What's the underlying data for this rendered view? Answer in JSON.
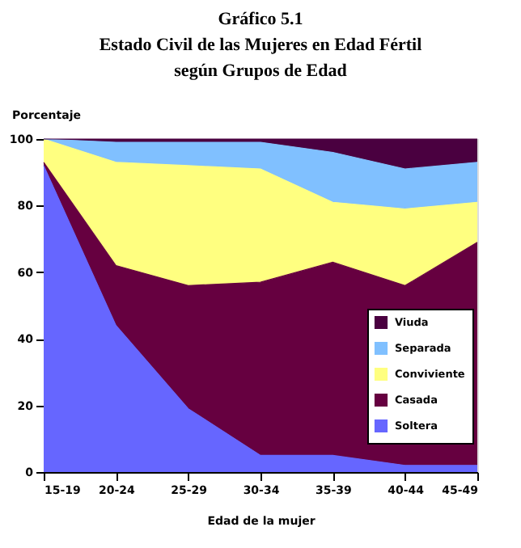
{
  "chart_data": {
    "type": "area",
    "stacked": true,
    "title": [
      "Gráfico 5.1",
      "Estado Civil de las Mujeres en Edad Fértil",
      "según Grupos de Edad"
    ],
    "ylabel": "Porcentaje",
    "xlabel": "Edad de la mujer",
    "categories": [
      "15-19",
      "20-24",
      "25-29",
      "30-34",
      "35-39",
      "40-44",
      "45-49"
    ],
    "series": [
      {
        "name": "Soltera",
        "color": "#6666ff",
        "values": [
          92,
          44,
          19,
          5,
          5,
          2,
          2
        ]
      },
      {
        "name": "Casada",
        "color": "#660040",
        "values": [
          1,
          18,
          37,
          52,
          58,
          54,
          67
        ]
      },
      {
        "name": "Conviviente",
        "color": "#ffff80",
        "values": [
          7,
          31,
          36,
          34,
          18,
          23,
          12
        ]
      },
      {
        "name": "Separada",
        "color": "#80c0ff",
        "values": [
          0,
          6,
          7,
          8,
          15,
          12,
          12
        ]
      },
      {
        "name": "Viuda",
        "color": "#4a0040",
        "values": [
          0,
          1,
          1,
          1,
          4,
          9,
          7
        ]
      }
    ],
    "ylim": [
      0,
      100
    ],
    "yticks": [
      0,
      20,
      40,
      60,
      80,
      100
    ],
    "legend": "right"
  }
}
